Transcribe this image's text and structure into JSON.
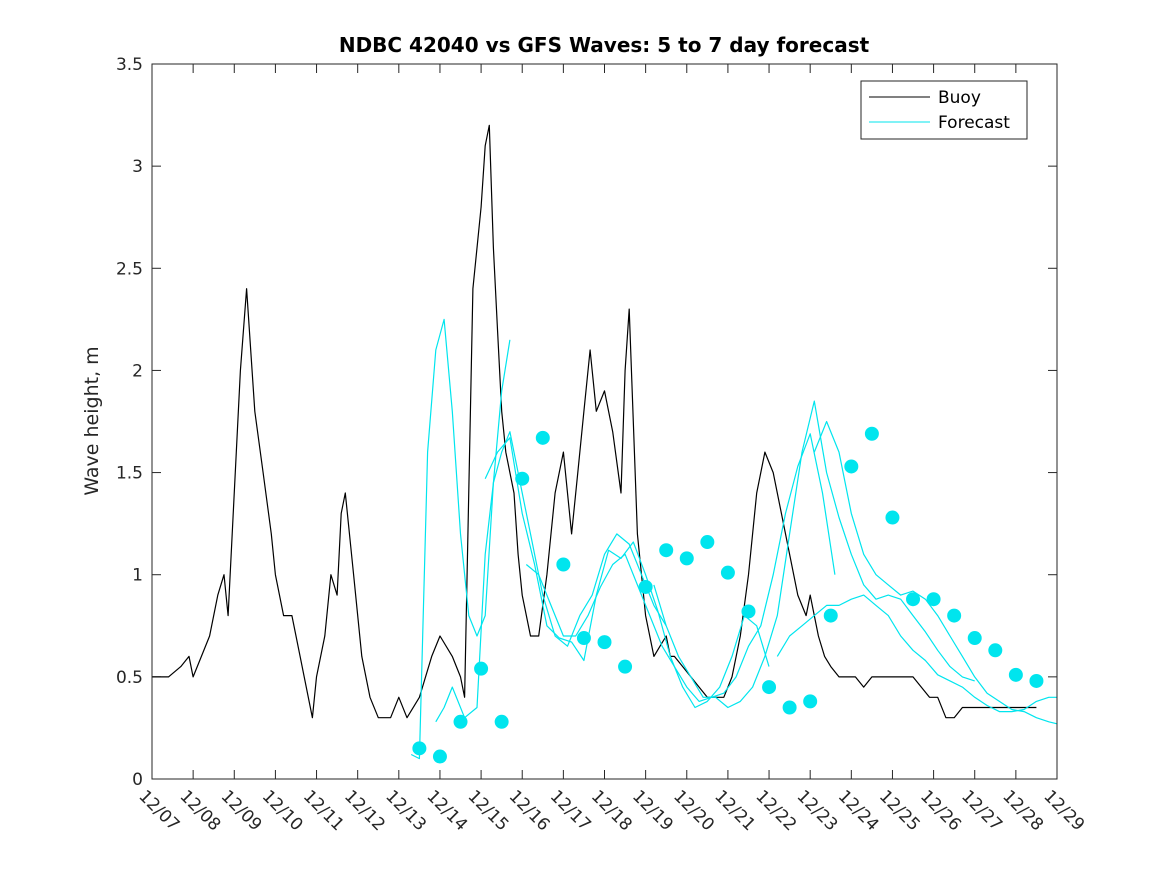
{
  "chart_data": {
    "type": "line",
    "title": "NDBC 42040 vs GFS Waves: 5 to 7 day forecast",
    "xlabel": "",
    "ylabel": "Wave height, m",
    "xlim": [
      0,
      22
    ],
    "ylim": [
      0,
      3.5
    ],
    "x_tick_values": [
      0,
      1,
      2,
      3,
      4,
      5,
      6,
      7,
      8,
      9,
      10,
      11,
      12,
      13,
      14,
      15,
      16,
      17,
      18,
      19,
      20,
      21,
      22
    ],
    "x_tick_labels": [
      "12/07",
      "12/08",
      "12/09",
      "12/10",
      "12/11",
      "12/12",
      "12/13",
      "12/14",
      "12/15",
      "12/16",
      "12/17",
      "12/18",
      "12/19",
      "12/20",
      "12/21",
      "12/22",
      "12/23",
      "12/24",
      "12/25",
      "12/26",
      "12/27",
      "12/28",
      "12/29"
    ],
    "y_tick_values": [
      0,
      0.5,
      1,
      1.5,
      2,
      2.5,
      3,
      3.5
    ],
    "y_tick_labels": [
      "0",
      "0.5",
      "1",
      "1.5",
      "2",
      "2.5",
      "3",
      "3.5"
    ],
    "legend": {
      "location": "top-right",
      "entries": [
        {
          "label": "Buoy",
          "color": "#000000"
        },
        {
          "label": "Forecast",
          "color": "#00e5ee"
        }
      ]
    },
    "series": [
      {
        "name": "Buoy",
        "color": "#000000",
        "x": [
          0,
          0.4,
          0.7,
          0.9,
          1.0,
          1.2,
          1.4,
          1.6,
          1.75,
          1.85,
          1.95,
          2.05,
          2.15,
          2.3,
          2.5,
          2.7,
          2.9,
          3.0,
          3.2,
          3.4,
          3.5,
          3.6,
          3.7,
          3.9,
          4.0,
          4.2,
          4.35,
          4.5,
          4.6,
          4.7,
          4.9,
          5.1,
          5.3,
          5.5,
          5.8,
          6.0,
          6.2,
          6.5,
          6.8,
          7.0,
          7.3,
          7.5,
          7.6,
          7.8,
          7.9,
          8.0,
          8.1,
          8.2,
          8.3,
          8.4,
          8.5,
          8.6,
          8.7,
          8.8,
          8.9,
          9.0,
          9.2,
          9.4,
          9.6,
          9.8,
          10.0,
          10.2,
          10.35,
          10.5,
          10.65,
          10.8,
          11.0,
          11.2,
          11.4,
          11.5,
          11.6,
          11.8,
          12.0,
          12.2,
          12.35,
          12.5,
          12.6,
          12.7,
          12.9,
          13.1,
          13.3,
          13.5,
          13.7,
          13.9,
          14.1,
          14.3,
          14.5,
          14.7,
          14.9,
          15.1,
          15.3,
          15.5,
          15.7,
          15.9,
          16.0,
          16.2,
          16.35,
          16.5,
          16.7,
          16.9,
          17.1,
          17.3,
          17.5,
          17.7,
          17.9,
          18.1,
          18.3,
          18.5,
          18.7,
          18.9,
          19.1,
          19.3,
          19.5,
          19.7,
          19.9,
          20.1,
          20.3,
          20.5,
          20.7,
          20.9,
          21.1,
          21.3,
          21.5
        ],
        "y": [
          0.5,
          0.5,
          0.55,
          0.6,
          0.5,
          0.6,
          0.7,
          0.9,
          1.0,
          0.8,
          1.2,
          1.6,
          2.0,
          2.4,
          1.8,
          1.5,
          1.2,
          1.0,
          0.8,
          0.8,
          0.7,
          0.6,
          0.5,
          0.3,
          0.5,
          0.7,
          1.0,
          0.9,
          1.3,
          1.4,
          1.0,
          0.6,
          0.4,
          0.3,
          0.3,
          0.4,
          0.3,
          0.4,
          0.6,
          0.7,
          0.6,
          0.5,
          0.4,
          2.4,
          2.6,
          2.8,
          3.1,
          3.2,
          2.6,
          2.2,
          1.8,
          1.6,
          1.5,
          1.4,
          1.1,
          0.9,
          0.7,
          0.7,
          1.0,
          1.4,
          1.6,
          1.2,
          1.5,
          1.8,
          2.1,
          1.8,
          1.9,
          1.7,
          1.4,
          2.0,
          2.3,
          1.2,
          0.8,
          0.6,
          0.65,
          0.7,
          0.6,
          0.6,
          0.55,
          0.5,
          0.45,
          0.4,
          0.4,
          0.4,
          0.5,
          0.7,
          1.0,
          1.4,
          1.6,
          1.5,
          1.3,
          1.1,
          0.9,
          0.8,
          0.9,
          0.7,
          0.6,
          0.55,
          0.5,
          0.5,
          0.5,
          0.45,
          0.5,
          0.5,
          0.5,
          0.5,
          0.5,
          0.5,
          0.45,
          0.4,
          0.4,
          0.3,
          0.3,
          0.35,
          0.35,
          0.35,
          0.35,
          0.35,
          0.35,
          0.35,
          0.35,
          0.35,
          0.35
        ]
      },
      {
        "name": "Forecast run 1",
        "color": "#00e5ee",
        "x": [
          6.3,
          6.5,
          6.7,
          6.9,
          7.1,
          7.3,
          7.5,
          7.7,
          7.9,
          8.1,
          8.3,
          8.5,
          8.7
        ],
        "y": [
          0.12,
          0.1,
          1.6,
          2.1,
          2.25,
          1.8,
          1.2,
          0.8,
          0.7,
          0.8,
          1.45,
          1.9,
          2.15
        ]
      },
      {
        "name": "Forecast run 2",
        "color": "#00e5ee",
        "x": [
          6.9,
          7.1,
          7.3,
          7.6,
          7.9,
          8.1,
          8.3,
          8.5,
          8.7,
          8.9,
          9.2,
          9.5,
          9.8,
          10.1,
          10.4,
          10.7,
          11.0,
          11.3,
          11.6,
          11.9,
          12.2,
          12.5
        ],
        "y": [
          0.28,
          0.35,
          0.45,
          0.3,
          0.35,
          1.1,
          1.45,
          1.6,
          1.7,
          1.5,
          1.2,
          0.9,
          0.7,
          0.65,
          0.8,
          0.9,
          1.1,
          1.2,
          1.15,
          1.0,
          0.85,
          0.75
        ]
      },
      {
        "name": "Forecast run 3",
        "color": "#00e5ee",
        "x": [
          8.1,
          8.4,
          8.7,
          9.0,
          9.3,
          9.6,
          9.9,
          10.2,
          10.5,
          10.8,
          11.1,
          11.4,
          11.7,
          12.0,
          12.3,
          12.6,
          12.9,
          13.2,
          13.5,
          13.8,
          14.1,
          14.4,
          14.7,
          15.0
        ],
        "y": [
          1.47,
          1.6,
          1.67,
          1.3,
          1.05,
          0.75,
          0.69,
          0.67,
          0.58,
          0.9,
          1.12,
          1.08,
          1.16,
          1.0,
          0.82,
          0.6,
          0.45,
          0.35,
          0.38,
          0.45,
          0.6,
          0.8,
          0.75,
          0.55
        ]
      },
      {
        "name": "Forecast run 4",
        "color": "#00e5ee",
        "x": [
          9.1,
          9.4,
          9.7,
          10.0,
          10.3,
          10.6,
          10.9,
          11.2,
          11.5,
          11.8,
          12.1,
          12.4,
          12.7,
          13.0,
          13.3,
          13.6,
          13.9,
          14.2,
          14.5,
          14.8,
          15.1,
          15.4,
          15.7,
          16.0,
          16.3,
          16.6
        ],
        "y": [
          1.05,
          1.0,
          0.85,
          0.7,
          0.7,
          0.8,
          0.94,
          1.05,
          1.1,
          0.95,
          0.8,
          0.65,
          0.55,
          0.45,
          0.38,
          0.4,
          0.42,
          0.5,
          0.65,
          0.75,
          1.0,
          1.3,
          1.53,
          1.69,
          1.4,
          1.0
        ]
      },
      {
        "name": "Forecast run 5",
        "color": "#00e5ee",
        "x": [
          12.2,
          12.5,
          12.8,
          13.1,
          13.4,
          13.7,
          14.0,
          14.3,
          14.6,
          14.9,
          15.2,
          15.5,
          15.8,
          16.1,
          16.4,
          16.7,
          17.0,
          17.3,
          17.6,
          17.9,
          18.2,
          18.5,
          18.8,
          19.1,
          19.4,
          19.7,
          20.0
        ],
        "y": [
          0.95,
          0.75,
          0.6,
          0.5,
          0.4,
          0.4,
          0.35,
          0.38,
          0.45,
          0.6,
          0.8,
          1.2,
          1.6,
          1.85,
          1.5,
          1.28,
          1.1,
          0.95,
          0.88,
          0.9,
          0.88,
          0.8,
          0.72,
          0.63,
          0.55,
          0.5,
          0.48
        ]
      },
      {
        "name": "Forecast run 6",
        "color": "#00e5ee",
        "x": [
          15.2,
          15.5,
          15.8,
          16.1,
          16.4,
          16.7,
          17.0,
          17.3,
          17.6,
          17.9,
          18.2,
          18.5,
          18.8,
          19.1,
          19.4,
          19.7,
          20.0,
          20.3,
          20.6,
          20.9,
          21.2,
          21.5,
          21.8,
          22.0
        ],
        "y": [
          0.6,
          0.7,
          0.75,
          0.8,
          0.85,
          0.85,
          0.88,
          0.9,
          0.85,
          0.8,
          0.7,
          0.63,
          0.58,
          0.51,
          0.48,
          0.45,
          0.4,
          0.36,
          0.33,
          0.33,
          0.34,
          0.38,
          0.4,
          0.4
        ]
      },
      {
        "name": "Forecast run 7",
        "color": "#00e5ee",
        "x": [
          16.1,
          16.4,
          16.7,
          17.0,
          17.3,
          17.6,
          17.9,
          18.2,
          18.5,
          18.8,
          19.1,
          19.4,
          19.7,
          20.0,
          20.3,
          20.6,
          20.9,
          21.2,
          21.5,
          21.8,
          22.0
        ],
        "y": [
          1.6,
          1.75,
          1.6,
          1.3,
          1.1,
          1.0,
          0.95,
          0.9,
          0.92,
          0.88,
          0.8,
          0.7,
          0.6,
          0.5,
          0.42,
          0.38,
          0.34,
          0.33,
          0.3,
          0.28,
          0.27
        ]
      }
    ],
    "markers": {
      "name": "Forecast markers",
      "color": "#00e5ee",
      "x": [
        6.5,
        7.0,
        7.5,
        8.0,
        8.5,
        9.0,
        9.5,
        10.0,
        10.5,
        11.0,
        11.5,
        12.0,
        12.5,
        13.0,
        13.5,
        14.0,
        14.5,
        15.0,
        15.5,
        16.0,
        16.5,
        17.0,
        17.5,
        18.0,
        18.5,
        19.0,
        19.5,
        20.0,
        20.5,
        21.0,
        21.5
      ],
      "y": [
        0.15,
        0.11,
        0.28,
        0.54,
        0.28,
        1.47,
        1.67,
        1.05,
        0.69,
        0.67,
        0.55,
        0.94,
        1.12,
        1.08,
        1.16,
        1.01,
        0.82,
        0.45,
        0.35,
        0.38,
        0.8,
        1.53,
        1.69,
        1.28,
        0.88,
        0.88,
        0.8,
        0.69,
        0.63,
        0.51,
        0.48
      ]
    }
  }
}
